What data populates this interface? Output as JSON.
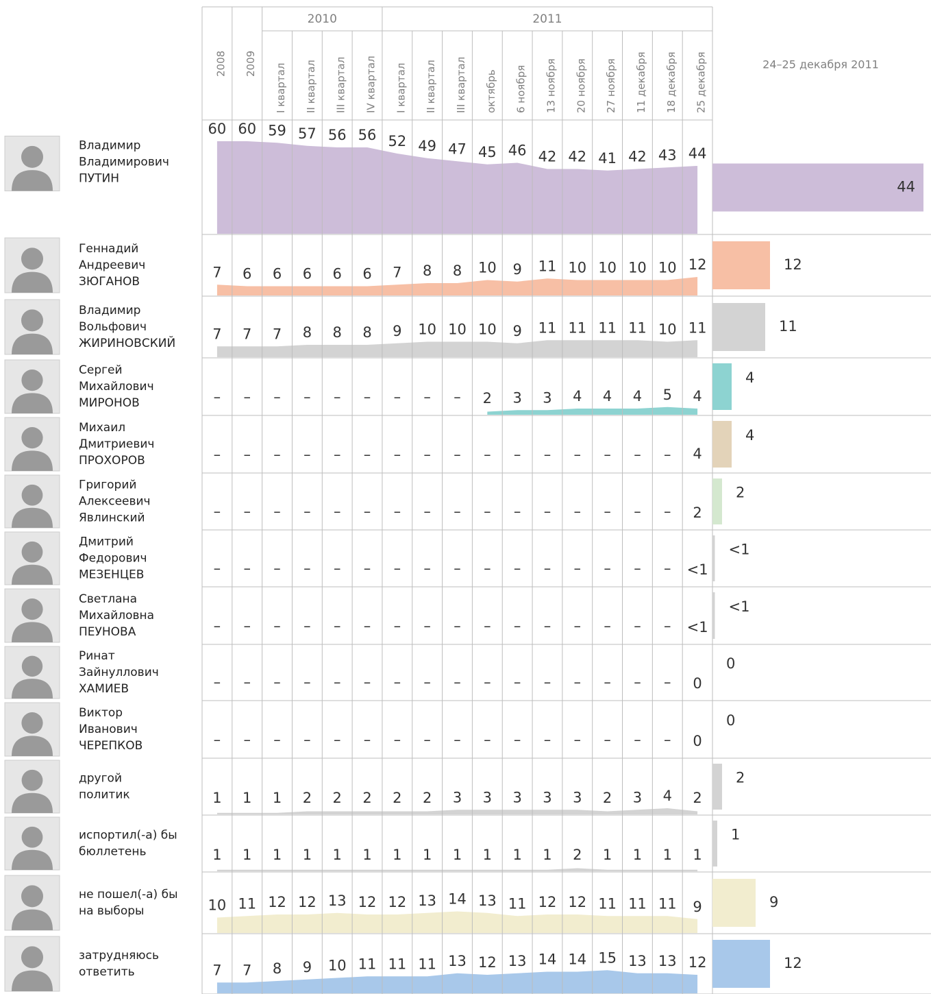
{
  "chart_data": {
    "type": "area",
    "columns": [
      {
        "year": "2008"
      },
      {
        "year": "2009"
      },
      {
        "year": "2010",
        "periods": [
          "I квартал",
          "II квартал",
          "III квартал",
          "IV квартал"
        ]
      },
      {
        "year": "2011",
        "periods": [
          "I квартал",
          "II квартал",
          "III квартал",
          "октябрь",
          "6 ноября",
          "13 ноября",
          "20 ноября",
          "27 ноября",
          "11 декабря",
          "18 декабря",
          "25 декабря"
        ]
      }
    ],
    "current_title": "24–25 декабря 2011",
    "series": [
      {
        "name": [
          "Владимир",
          "Владимирович",
          "ПУТИН"
        ],
        "color": "#cdbdd9",
        "values": [
          60,
          60,
          59,
          57,
          56,
          56,
          52,
          49,
          47,
          45,
          46,
          42,
          42,
          41,
          42,
          43,
          44
        ],
        "current": 44
      },
      {
        "name": [
          "Геннадий",
          "Андреевич",
          "ЗЮГАНОВ"
        ],
        "color": "#f7bfa5",
        "values": [
          7,
          6,
          6,
          6,
          6,
          6,
          7,
          8,
          8,
          10,
          9,
          11,
          10,
          10,
          10,
          10,
          12
        ],
        "current": 12
      },
      {
        "name": [
          "Владимир",
          "Вольфович",
          "ЖИРИНОВСКИЙ"
        ],
        "color": "#d3d3d3",
        "values": [
          7,
          7,
          7,
          8,
          8,
          8,
          9,
          10,
          10,
          10,
          9,
          11,
          11,
          11,
          11,
          10,
          11
        ],
        "current": 11
      },
      {
        "name": [
          "Сергей",
          "Михайлович",
          "МИРОНОВ"
        ],
        "color": "#8dd3d1",
        "values": [
          null,
          null,
          null,
          null,
          null,
          null,
          null,
          null,
          null,
          2,
          3,
          3,
          4,
          4,
          4,
          5,
          4
        ],
        "value_labels": [
          "–",
          "–",
          "–",
          "–",
          "–",
          "–",
          "–",
          "–",
          "–",
          null,
          null,
          null,
          null,
          null,
          null,
          null,
          null
        ],
        "current": 4
      },
      {
        "name": [
          "Михаил",
          "Дмитриевич",
          "ПРОХОРОВ"
        ],
        "color": "#e3d3b9",
        "values": [
          null,
          null,
          null,
          null,
          null,
          null,
          null,
          null,
          null,
          null,
          null,
          null,
          null,
          null,
          null,
          null,
          4
        ],
        "value_labels": [
          "–",
          "–",
          "–",
          "–",
          "–",
          "–",
          "–",
          "–",
          "–",
          "–",
          "–",
          "–",
          "–",
          "–",
          "–",
          "–",
          null
        ],
        "current": 4
      },
      {
        "name": [
          "Григорий",
          "Алексеевич",
          "Явлинский"
        ],
        "color": "#d4e8cf",
        "values": [
          null,
          null,
          null,
          null,
          null,
          null,
          null,
          null,
          null,
          null,
          null,
          null,
          null,
          null,
          null,
          null,
          2
        ],
        "value_labels": [
          "–",
          "–",
          "–",
          "–",
          "–",
          "–",
          "–",
          "–",
          "–",
          "–",
          "–",
          "–",
          "–",
          "–",
          "–",
          "–",
          null
        ],
        "current": 2
      },
      {
        "name": [
          "Дмитрий",
          "Федорович",
          "МЕЗЕНЦЕВ"
        ],
        "color": "#d3d3d3",
        "values": [
          null,
          null,
          null,
          null,
          null,
          null,
          null,
          null,
          null,
          null,
          null,
          null,
          null,
          null,
          null,
          null,
          0.5
        ],
        "value_labels": [
          "–",
          "–",
          "–",
          "–",
          "–",
          "–",
          "–",
          "–",
          "–",
          "–",
          "–",
          "–",
          "–",
          "–",
          "–",
          "–",
          "<1"
        ],
        "current": 0.5,
        "current_label": "<1"
      },
      {
        "name": [
          "Светлана",
          "Михайловна",
          "ПЕУНОВА"
        ],
        "color": "#d3d3d3",
        "values": [
          null,
          null,
          null,
          null,
          null,
          null,
          null,
          null,
          null,
          null,
          null,
          null,
          null,
          null,
          null,
          null,
          0.5
        ],
        "value_labels": [
          "–",
          "–",
          "–",
          "–",
          "–",
          "–",
          "–",
          "–",
          "–",
          "–",
          "–",
          "–",
          "–",
          "–",
          "–",
          "–",
          "<1"
        ],
        "current": 0.5,
        "current_label": "<1"
      },
      {
        "name": [
          "Ринат",
          "Зайнуллович",
          "ХАМИЕВ"
        ],
        "color": "#d3d3d3",
        "values": [
          null,
          null,
          null,
          null,
          null,
          null,
          null,
          null,
          null,
          null,
          null,
          null,
          null,
          null,
          null,
          null,
          0
        ],
        "value_labels": [
          "–",
          "–",
          "–",
          "–",
          "–",
          "–",
          "–",
          "–",
          "–",
          "–",
          "–",
          "–",
          "–",
          "–",
          "–",
          "–",
          null
        ],
        "current": 0
      },
      {
        "name": [
          "Виктор",
          "Иванович",
          "ЧЕРЕПКОВ"
        ],
        "color": "#d3d3d3",
        "values": [
          null,
          null,
          null,
          null,
          null,
          null,
          null,
          null,
          null,
          null,
          null,
          null,
          null,
          null,
          null,
          null,
          0
        ],
        "value_labels": [
          "–",
          "–",
          "–",
          "–",
          "–",
          "–",
          "–",
          "–",
          "–",
          "–",
          "–",
          "–",
          "–",
          "–",
          "–",
          "–",
          null
        ],
        "current": 0
      },
      {
        "name": [
          "другой",
          "политик"
        ],
        "color": "#d3d3d3",
        "values": [
          1,
          1,
          1,
          2,
          2,
          2,
          2,
          2,
          3,
          3,
          3,
          3,
          3,
          2,
          3,
          4,
          2
        ],
        "current": 2
      },
      {
        "name": [
          "испортил(-а) бы",
          "бюллетень"
        ],
        "color": "#d3d3d3",
        "values": [
          1,
          1,
          1,
          1,
          1,
          1,
          1,
          1,
          1,
          1,
          1,
          1,
          2,
          1,
          1,
          1,
          1
        ],
        "current": 1
      },
      {
        "name": [
          "не пошел(-а) бы",
          "на выборы"
        ],
        "color": "#f2edcf",
        "values": [
          10,
          11,
          12,
          12,
          13,
          12,
          12,
          13,
          14,
          13,
          11,
          12,
          12,
          11,
          11,
          11,
          9
        ],
        "current": 9
      },
      {
        "name": [
          "затрудняюсь",
          "ответить"
        ],
        "color": "#a8c8ea",
        "values": [
          7,
          7,
          8,
          9,
          10,
          11,
          11,
          11,
          13,
          12,
          13,
          14,
          14,
          15,
          13,
          13,
          12
        ],
        "current": 12
      }
    ]
  }
}
